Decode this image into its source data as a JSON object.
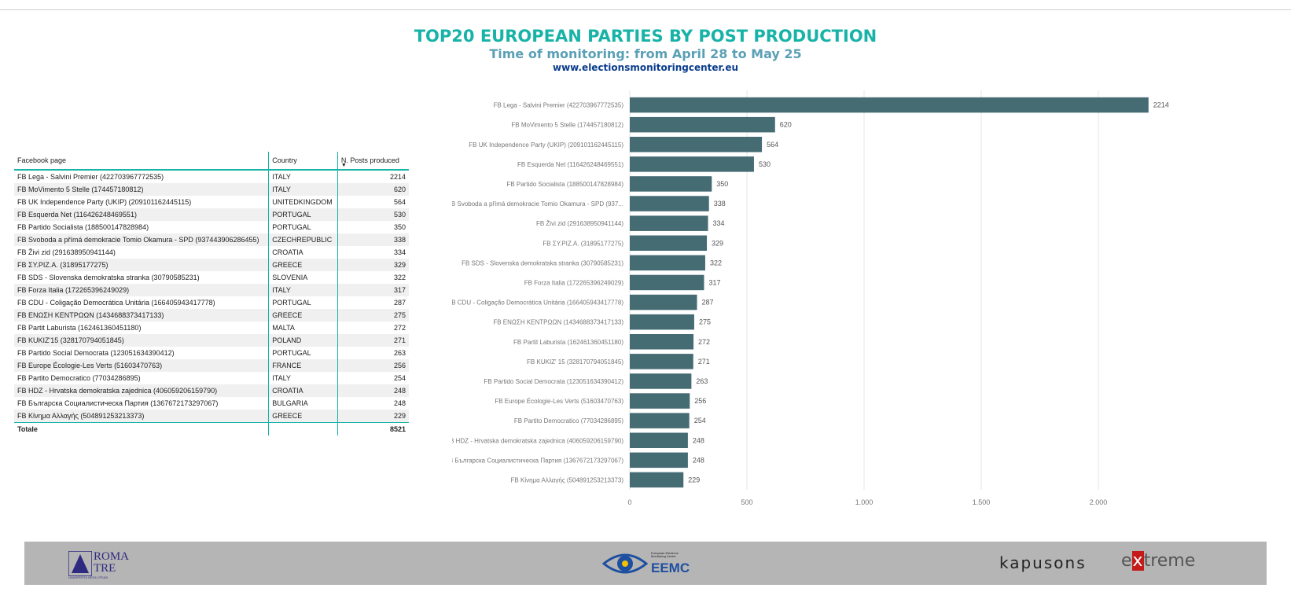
{
  "header": {
    "title": "TOP20 EUROPEAN PARTIES BY POST PRODUCTION",
    "subtitle": "Time of monitoring: from April 28 to May 25",
    "url": "www.electionsmonitoringcenter.eu"
  },
  "table": {
    "columns": [
      "Facebook page",
      "Country",
      "N. Posts produced"
    ],
    "rows": [
      [
        "FB Lega - Salvini Premier (422703967772535)",
        "ITALY",
        "2214"
      ],
      [
        "FB MoVimento 5 Stelle (174457180812)",
        "ITALY",
        "620"
      ],
      [
        "FB UK Independence Party (UKIP) (209101162445115)",
        "UNITEDKINGDOM",
        "564"
      ],
      [
        "FB Esquerda Net (116426248469551)",
        "PORTUGAL",
        "530"
      ],
      [
        "FB Partido Socialista (188500147828984)",
        "PORTUGAL",
        "350"
      ],
      [
        "FB Svoboda a přímá demokracie Tomio Okamura - SPD (937443906286455)",
        "CZECHREPUBLIC",
        "338"
      ],
      [
        "FB Živi zid (291638950941144)",
        "CROATIA",
        "334"
      ],
      [
        "FB ΣΥ.ΡΙΖ.Α. (31895177275)",
        "GREECE",
        "329"
      ],
      [
        "FB SDS - Slovenska demokratska stranka (30790585231)",
        "SLOVENIA",
        "322"
      ],
      [
        "FB Forza Italia (172265396249029)",
        "ITALY",
        "317"
      ],
      [
        "FB CDU - Coligação Democrática Unitária (166405943417778)",
        "PORTUGAL",
        "287"
      ],
      [
        "FB ΕΝΩΣΗ ΚΕΝΤΡΩΩΝ (1434688373417133)",
        "GREECE",
        "275"
      ],
      [
        "FB Partit Laburista (162461360451180)",
        "MALTA",
        "272"
      ],
      [
        "FB KUKIZ'15 (328170794051845)",
        "POLAND",
        "271"
      ],
      [
        "FB Partido Social Democrata (123051634390412)",
        "PORTUGAL",
        "263"
      ],
      [
        "FB Europe Écologie-Les Verts (51603470763)",
        "FRANCE",
        "256"
      ],
      [
        "FB Partito Democratico (77034286895)",
        "ITALY",
        "254"
      ],
      [
        "FB HDZ - Hrvatska demokratska zajednica (406059206159790)",
        "CROATIA",
        "248"
      ],
      [
        "FB Българска Социалистическа Партия (1367672173297067)",
        "BULGARIA",
        "248"
      ],
      [
        "FB Κίνημα Αλλαγής (504891253213373)",
        "GREECE",
        "229"
      ]
    ],
    "total_label": "Totale",
    "total_value": "8521"
  },
  "chart_data": {
    "type": "bar",
    "orientation": "horizontal",
    "categories": [
      "FB Lega - Salvini Premier (422703967772535)",
      "FB MoVimento 5 Stelle (174457180812)",
      "FB UK Independence Party (UKIP) (209101162445115)",
      "FB Esquerda Net (116426248469551)",
      "FB Partido Socialista (188500147828984)",
      "FB Svoboda a přímá demokracie Tomio Okamura - SPD (937...",
      "FB Živi zid (291638950941144)",
      "FB ΣΥ.ΡΙΖ.Α. (31895177275)",
      "FB SDS - Slovenska demokratska stranka (30790585231)",
      "FB Forza Italia (172265396249029)",
      "FB CDU - Coligação Democrática Unitária (166405943417778)",
      "FB ΕΝΩΣΗ ΚΕΝΤΡΩΩΝ (1434688373417133)",
      "FB Partit Laburista (162461360451180)",
      "FB KUKIZ' 15 (328170794051845)",
      "FB Partido Social Democrata (123051634390412)",
      "FB Europe Écologie-Les Verts (51603470763)",
      "FB Partito Democratico (77034286895)",
      "FB HDZ - Hrvatska demokratska zajednica (406059206159790)",
      "FB Българска Социалистическа Партия (1367672173297067)",
      "FB Κίνημα Αλλαγής (504891253213373)"
    ],
    "values": [
      2214,
      620,
      564,
      530,
      350,
      338,
      334,
      329,
      322,
      317,
      287,
      275,
      272,
      271,
      263,
      256,
      254,
      248,
      248,
      229
    ],
    "xlim": [
      0,
      2500
    ],
    "xticks": [
      0,
      500,
      1000,
      1500,
      2000
    ],
    "xtick_labels": [
      "0",
      "500",
      "1.000",
      "1.500",
      "2.000"
    ],
    "grid": true,
    "bar_color": "#456b73"
  },
  "footer": {
    "logos": {
      "roma_top": "ROMA",
      "roma_bottom": "TRE",
      "roma_sub": "UNIVERSITÀ DEGLI STUDI",
      "eemc_name": "EEMC",
      "eemc_small": "European Elections Monitoring Center",
      "kapusons": "kapusons",
      "extreme_pre": "e",
      "extreme_x": "x",
      "extreme_post": "treme"
    },
    "background": "#b5b5b5"
  }
}
